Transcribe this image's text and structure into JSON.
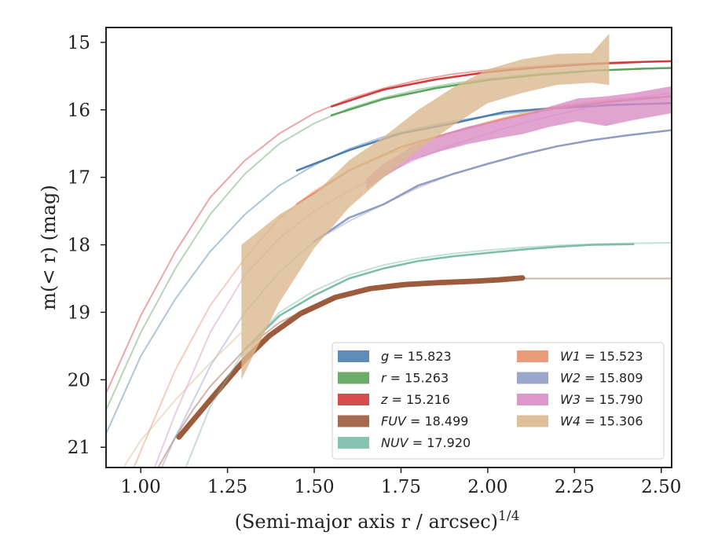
{
  "chart_data": {
    "type": "line",
    "xlabel": "(Semi-major axis r / arcsec)",
    "xlabel_italic_var": "r",
    "xlabel_exponent": "1/4",
    "ylabel": "m(< r) (mag)",
    "xlim": [
      0.9,
      2.53
    ],
    "ylim": [
      21.3,
      14.78
    ],
    "y_inverted": true,
    "xticks": [
      1.0,
      1.25,
      1.5,
      1.75,
      2.0,
      2.25,
      2.5
    ],
    "xtick_labels": [
      "1.00",
      "1.25",
      "1.50",
      "1.75",
      "2.00",
      "2.25",
      "2.50"
    ],
    "yticks": [
      15,
      16,
      17,
      18,
      19,
      20,
      21
    ],
    "ytick_labels": [
      "15",
      "16",
      "17",
      "18",
      "19",
      "20",
      "21"
    ],
    "grid": false,
    "legend_location": "lower-right",
    "legend_columns": 2,
    "series": [
      {
        "name": "g = 15.823",
        "band": "g",
        "total_mag": "15.823",
        "color": "#4c7eb0",
        "band_width": 0.05,
        "model_x": [
          0.9,
          1.0,
          1.1,
          1.2,
          1.3,
          1.4,
          1.5,
          1.6,
          1.7,
          1.8,
          1.9,
          2.0,
          2.1,
          2.2,
          2.3,
          2.4,
          2.53
        ],
        "model_y": [
          20.8,
          19.65,
          18.8,
          18.1,
          17.55,
          17.12,
          16.82,
          16.58,
          16.4,
          16.27,
          16.17,
          16.09,
          16.03,
          15.98,
          15.95,
          15.92,
          15.9
        ],
        "data_x": [
          1.45,
          1.6,
          1.75,
          1.9,
          2.05,
          2.2,
          2.35,
          2.53
        ],
        "data_y": [
          16.9,
          16.6,
          16.35,
          16.2,
          16.03,
          15.97,
          15.93,
          15.9
        ]
      },
      {
        "name": "r = 15.263",
        "band": "r",
        "total_mag": "15.263",
        "color": "#5aa35a",
        "band_width": 0.05,
        "model_x": [
          0.9,
          1.0,
          1.1,
          1.2,
          1.3,
          1.4,
          1.5,
          1.6,
          1.7,
          1.8,
          1.9,
          2.0,
          2.1,
          2.2,
          2.3,
          2.4,
          2.53
        ],
        "model_y": [
          20.45,
          19.3,
          18.35,
          17.55,
          16.95,
          16.5,
          16.2,
          15.98,
          15.82,
          15.7,
          15.61,
          15.54,
          15.49,
          15.45,
          15.42,
          15.4,
          15.38
        ],
        "data_x": [
          1.55,
          1.7,
          1.85,
          2.0,
          2.15,
          2.3,
          2.45,
          2.53
        ],
        "data_y": [
          16.08,
          15.84,
          15.68,
          15.56,
          15.48,
          15.42,
          15.39,
          15.38
        ]
      },
      {
        "name": "z = 15.216",
        "band": "z",
        "total_mag": "15.216",
        "color": "#d23a3a",
        "band_width": 0.05,
        "model_x": [
          0.9,
          1.0,
          1.1,
          1.2,
          1.3,
          1.4,
          1.5,
          1.6,
          1.7,
          1.8,
          1.9,
          2.0,
          2.1,
          2.2,
          2.3,
          2.4,
          2.53
        ],
        "model_y": [
          20.2,
          19.05,
          18.1,
          17.3,
          16.75,
          16.35,
          16.05,
          15.84,
          15.68,
          15.56,
          15.47,
          15.41,
          15.37,
          15.33,
          15.31,
          15.29,
          15.28
        ],
        "data_x": [
          1.55,
          1.7,
          1.85,
          2.0,
          2.15,
          2.3,
          2.45,
          2.53
        ],
        "data_y": [
          15.95,
          15.7,
          15.55,
          15.44,
          15.37,
          15.32,
          15.29,
          15.28
        ]
      },
      {
        "name": "FUV = 18.499",
        "band": "FUV",
        "total_mag": "18.499",
        "color": "#9b5b3c",
        "band_width": 0.16,
        "model_x": [
          1.0,
          1.05,
          1.1,
          1.15,
          1.2,
          1.3,
          1.4,
          1.5,
          1.6,
          1.7,
          1.8,
          1.9,
          2.0,
          2.1,
          2.2,
          2.3,
          2.4,
          2.53
        ],
        "model_y": [
          21.9,
          21.3,
          20.85,
          20.45,
          20.1,
          19.55,
          19.15,
          18.9,
          18.72,
          18.62,
          18.56,
          18.53,
          18.51,
          18.5,
          18.5,
          18.5,
          18.5,
          18.5
        ],
        "data_x": [
          1.11,
          1.2,
          1.3,
          1.37,
          1.46,
          1.56,
          1.66,
          1.76,
          1.86,
          1.96,
          2.03,
          2.1
        ],
        "data_y": [
          20.85,
          20.3,
          19.7,
          19.35,
          19.02,
          18.78,
          18.65,
          18.59,
          18.56,
          18.54,
          18.52,
          18.49
        ]
      },
      {
        "name": "NUV = 17.920",
        "band": "NUV",
        "total_mag": "17.920",
        "color": "#7bbda8",
        "band_width": 0.05,
        "model_x": [
          1.13,
          1.2,
          1.3,
          1.4,
          1.5,
          1.6,
          1.7,
          1.8,
          1.9,
          2.0,
          2.1,
          2.2,
          2.3,
          2.4,
          2.53
        ],
        "model_y": [
          21.3,
          20.4,
          19.55,
          19.0,
          18.68,
          18.45,
          18.3,
          18.2,
          18.13,
          18.08,
          18.04,
          18.01,
          17.99,
          17.98,
          17.97
        ],
        "data_x": [
          1.3,
          1.4,
          1.5,
          1.6,
          1.7,
          1.8,
          1.9,
          2.0,
          2.1,
          2.2,
          2.3,
          2.42
        ],
        "data_y": [
          19.55,
          19.05,
          18.75,
          18.5,
          18.35,
          18.24,
          18.17,
          18.12,
          18.07,
          18.03,
          18.0,
          17.99
        ]
      },
      {
        "name": "W1 = 15.523",
        "band": "W1",
        "total_mag": "15.523",
        "color": "#e8906a",
        "band_width": 0.05,
        "model_x": [
          0.98,
          1.05,
          1.1,
          1.2,
          1.3,
          1.4,
          1.5,
          1.6,
          1.7,
          1.8,
          1.9,
          2.0,
          2.1,
          2.2,
          2.3,
          2.4,
          2.53
        ],
        "model_y": [
          21.3,
          20.45,
          19.85,
          18.9,
          18.2,
          17.6,
          17.2,
          16.9,
          16.68,
          16.5,
          16.33,
          16.18,
          16.05,
          15.95,
          15.88,
          15.83,
          15.8
        ],
        "data_x": [
          1.45,
          1.6,
          1.75,
          1.9,
          2.05,
          2.2,
          2.35,
          2.53
        ],
        "data_y": [
          17.4,
          16.9,
          16.55,
          16.33,
          16.13,
          15.97,
          15.88,
          15.8
        ]
      },
      {
        "name": "W2 = 15.809",
        "band": "W2",
        "total_mag": "15.809",
        "color": "#8f9cc4",
        "band_width": 0.05,
        "model_x": [
          1.06,
          1.1,
          1.2,
          1.3,
          1.4,
          1.5,
          1.6,
          1.7,
          1.8,
          1.9,
          2.0,
          2.1,
          2.2,
          2.3,
          2.4,
          2.53
        ],
        "model_y": [
          21.3,
          20.85,
          19.8,
          19.0,
          18.4,
          17.95,
          17.65,
          17.4,
          17.15,
          16.95,
          16.8,
          16.66,
          16.54,
          16.45,
          16.38,
          16.3
        ],
        "data_x": [
          1.5,
          1.6,
          1.7,
          1.8,
          1.9,
          2.0,
          2.1,
          2.2,
          2.3,
          2.4,
          2.53
        ],
        "data_y": [
          17.95,
          17.6,
          17.4,
          17.12,
          16.95,
          16.8,
          16.66,
          16.54,
          16.45,
          16.38,
          16.3
        ]
      },
      {
        "name": "W3 = 15.790",
        "band": "W3",
        "total_mag": "15.790",
        "color": "#d98cc4",
        "band_width": 0.05,
        "model_x": [
          1.04,
          1.1,
          1.2,
          1.3,
          1.4,
          1.5,
          1.6,
          1.7,
          1.8,
          1.9,
          2.0,
          2.1,
          2.2,
          2.3,
          2.4,
          2.53
        ],
        "model_y": [
          21.3,
          20.5,
          19.3,
          18.45,
          17.9,
          17.5,
          17.2,
          16.95,
          16.72,
          16.52,
          16.35,
          16.2,
          16.07,
          15.95,
          15.85,
          15.75
        ],
        "data_x": [
          1.65,
          1.7,
          1.78,
          1.86,
          1.94,
          2.02,
          2.1,
          2.18,
          2.26,
          2.34,
          2.42,
          2.53
        ],
        "data_y": [
          17.1,
          16.9,
          16.65,
          16.5,
          16.38,
          16.3,
          16.22,
          16.1,
          16.0,
          16.02,
          15.95,
          15.85
        ],
        "data_halfwidth": [
          0.08,
          0.1,
          0.1,
          0.12,
          0.13,
          0.13,
          0.14,
          0.15,
          0.17,
          0.22,
          0.2,
          0.2
        ]
      },
      {
        "name": "W4 = 15.306",
        "band": "W4",
        "total_mag": "15.306",
        "color": "#d9b98f",
        "band_width": 0.05,
        "model_x": [
          0.95,
          1.0,
          1.1,
          1.2,
          1.29
        ],
        "model_y": [
          21.3,
          20.9,
          20.3,
          19.75,
          19.3
        ],
        "data_x": [
          1.29,
          1.4,
          1.5,
          1.6,
          1.7,
          1.8,
          1.9,
          2.0,
          2.1,
          2.2,
          2.3,
          2.35
        ],
        "data_y": [
          19.0,
          18.2,
          17.65,
          17.1,
          16.7,
          16.3,
          15.95,
          15.65,
          15.5,
          15.4,
          15.38,
          15.25
        ],
        "data_halfwidth": [
          1.0,
          0.65,
          0.4,
          0.35,
          0.3,
          0.3,
          0.28,
          0.25,
          0.25,
          0.23,
          0.22,
          0.38
        ]
      }
    ]
  }
}
